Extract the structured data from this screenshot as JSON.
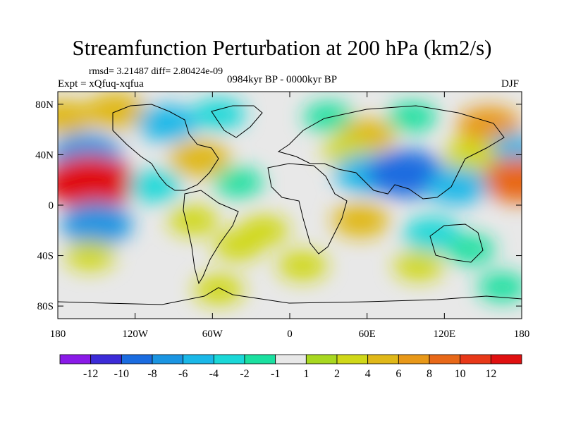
{
  "figure": {
    "title": "Streamfunction Perturbation at 200 hPa (km2/s)",
    "stats": "rmsd= 3.21487 diff= 2.80424e-09",
    "experiment": "Expt = xQfuq-xqfua",
    "period": "0984kyr BP - 0000kyr BP",
    "season": "DJF"
  },
  "axes": {
    "lon_range": [
      -180,
      180
    ],
    "lat_range": [
      -90,
      90
    ],
    "x_ticks": [
      {
        "lon": -180,
        "label": "180"
      },
      {
        "lon": -120,
        "label": "120W"
      },
      {
        "lon": -60,
        "label": "60W"
      },
      {
        "lon": 0,
        "label": "0"
      },
      {
        "lon": 60,
        "label": "60E"
      },
      {
        "lon": 120,
        "label": "120E"
      },
      {
        "lon": 180,
        "label": "180"
      }
    ],
    "y_ticks": [
      {
        "lat": 80,
        "label": "80N"
      },
      {
        "lat": 40,
        "label": "40N"
      },
      {
        "lat": 0,
        "label": "0"
      },
      {
        "lat": -40,
        "label": "40S"
      },
      {
        "lat": -80,
        "label": "80S"
      }
    ]
  },
  "colorbar": {
    "colors": [
      "#8a1ae8",
      "#3c2bd8",
      "#1a6ce0",
      "#1a95e2",
      "#1ab8e8",
      "#1ad8d8",
      "#1ae0a0",
      "#e8e8e8",
      "#a8d820",
      "#d0d818",
      "#e0b818",
      "#e89818",
      "#e86818",
      "#e83818",
      "#e01010"
    ],
    "labels": [
      "-12",
      "-10",
      "-8",
      "-6",
      "-4",
      "-2",
      "-1",
      "1",
      "2",
      "4",
      "6",
      "8",
      "10",
      "12"
    ]
  },
  "chart_data": {
    "type": "heatmap",
    "title": "Streamfunction Perturbation at 200 hPa (km2/s)",
    "variable": "streamfunction perturbation",
    "units": "km2/s",
    "levels": [
      -12,
      -10,
      -8,
      -6,
      -4,
      -2,
      -1,
      1,
      2,
      4,
      6,
      8,
      10,
      12
    ],
    "features": [
      {
        "lon": -135,
        "lat": 75,
        "value": 5
      },
      {
        "lon": -95,
        "lat": 65,
        "value": -5
      },
      {
        "lon": -55,
        "lat": 72,
        "value": -3
      },
      {
        "lon": 30,
        "lat": 70,
        "value": -2
      },
      {
        "lon": 95,
        "lat": 70,
        "value": -2
      },
      {
        "lon": 60,
        "lat": 55,
        "value": 4
      },
      {
        "lon": 155,
        "lat": 63,
        "value": 6
      },
      {
        "lon": -175,
        "lat": 70,
        "value": 4
      },
      {
        "lon": -158,
        "lat": 40,
        "value": -8
      },
      {
        "lon": 175,
        "lat": 42,
        "value": -5
      },
      {
        "lon": -70,
        "lat": 37,
        "value": 5
      },
      {
        "lon": 45,
        "lat": 43,
        "value": 2
      },
      {
        "lon": 140,
        "lat": 40,
        "value": 3
      },
      {
        "lon": -155,
        "lat": 18,
        "value": 13
      },
      {
        "lon": 178,
        "lat": 20,
        "value": 9
      },
      {
        "lon": -105,
        "lat": 15,
        "value": -3
      },
      {
        "lon": -40,
        "lat": 18,
        "value": -2
      },
      {
        "lon": 60,
        "lat": 25,
        "value": -6
      },
      {
        "lon": 90,
        "lat": 25,
        "value": -10
      },
      {
        "lon": 130,
        "lat": 15,
        "value": -5
      },
      {
        "lon": -150,
        "lat": -15,
        "value": -8
      },
      {
        "lon": -75,
        "lat": -12,
        "value": 2
      },
      {
        "lon": -20,
        "lat": -20,
        "value": 2
      },
      {
        "lon": 55,
        "lat": -12,
        "value": 4
      },
      {
        "lon": 110,
        "lat": -23,
        "value": -4
      },
      {
        "lon": 140,
        "lat": -35,
        "value": -2
      },
      {
        "lon": -155,
        "lat": -40,
        "value": 2
      },
      {
        "lon": -40,
        "lat": -32,
        "value": 2
      },
      {
        "lon": 10,
        "lat": -48,
        "value": 2
      },
      {
        "lon": 100,
        "lat": -48,
        "value": 2
      },
      {
        "lon": -55,
        "lat": -67,
        "value": 2
      },
      {
        "lon": 165,
        "lat": -65,
        "value": -2
      }
    ]
  }
}
